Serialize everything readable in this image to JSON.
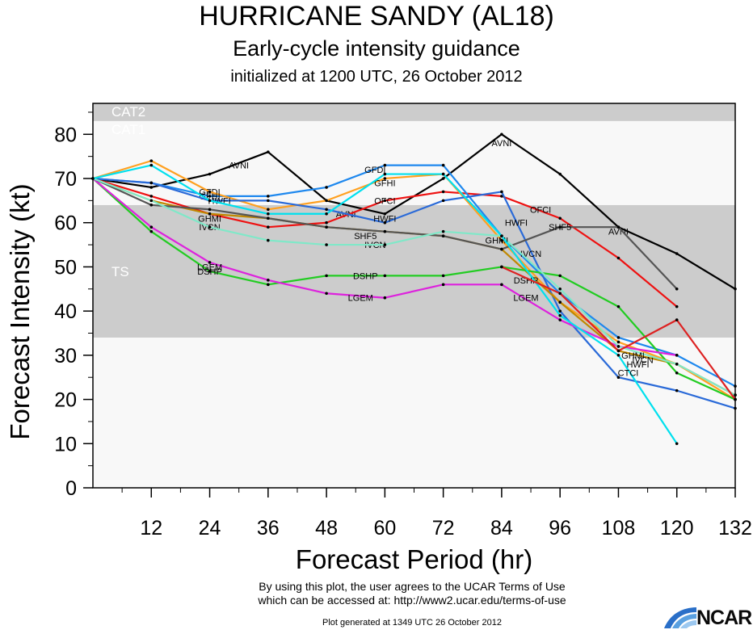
{
  "header": {
    "title": "HURRICANE SANDY (AL18)",
    "subtitle": "Early-cycle intensity guidance",
    "init": "initialized at 1200 UTC, 26 October 2012"
  },
  "footer": {
    "terms_line1": "By using this plot, the user agrees to the UCAR Terms of Use",
    "terms_line2": "which can be accessed at: http://www2.ucar.edu/terms-of-use",
    "generated": "Plot generated at 1349 UTC   26 October 2012",
    "logo_text": "NCAR"
  },
  "chart_data": {
    "type": "line",
    "xlabel": "Forecast Period (hr)",
    "ylabel": "Forecast Intensity (kt)",
    "xlim": [
      0,
      132
    ],
    "ylim": [
      0,
      87
    ],
    "xticks": [
      12,
      24,
      36,
      48,
      60,
      72,
      84,
      96,
      108,
      120,
      132
    ],
    "yticks": [
      0,
      10,
      20,
      30,
      40,
      50,
      60,
      70,
      80
    ],
    "bands": [
      {
        "label": "TS",
        "from": 34,
        "to": 64,
        "color": "#cccccc"
      },
      {
        "label": "CAT1",
        "from": 64,
        "to": 83,
        "color": "#f8f8f8"
      },
      {
        "label": "CAT2",
        "from": 83,
        "to": 96,
        "color": "#cccccc"
      }
    ],
    "below_band_color": "#f8f8f8",
    "series": [
      {
        "name": "AVNI",
        "color": "#000000",
        "x": [
          0,
          12,
          24,
          36,
          48,
          60,
          72,
          84,
          96,
          108,
          120,
          132
        ],
        "y": [
          70,
          68,
          71,
          76,
          65,
          62,
          70,
          80,
          71,
          59,
          53,
          45
        ],
        "labels": [
          [
            30,
            73
          ],
          [
            52,
            62
          ],
          [
            84,
            78
          ],
          [
            108,
            58
          ]
        ]
      },
      {
        "name": "OFCI",
        "color": "#ee1111",
        "x": [
          0,
          12,
          24,
          36,
          48,
          60,
          72,
          84,
          96,
          108,
          120
        ],
        "y": [
          70,
          66,
          62,
          59,
          60,
          65,
          67,
          66,
          61,
          52,
          41
        ],
        "labels": [
          [
            60,
            65
          ],
          [
            92,
            63
          ]
        ]
      },
      {
        "name": "GFDI",
        "color": "#1e88ee",
        "x": [
          0,
          12,
          24,
          36,
          48,
          60,
          72,
          84,
          96,
          108,
          120,
          132
        ],
        "y": [
          70,
          69,
          66,
          66,
          68,
          73,
          73,
          57,
          44,
          34,
          30,
          23
        ],
        "labels": [
          [
            24,
            67
          ],
          [
            58,
            72
          ]
        ]
      },
      {
        "name": "GFHI",
        "color": "#ffa020",
        "x": [
          0,
          12,
          24,
          36,
          48,
          60,
          72,
          84,
          96,
          108,
          120,
          132
        ],
        "y": [
          70,
          74,
          67,
          63,
          65,
          70,
          71,
          56,
          42,
          33,
          28,
          20
        ],
        "labels": [
          [
            24,
            66
          ],
          [
            60,
            69
          ]
        ]
      },
      {
        "name": "HWFI",
        "color": "#2a6ad8",
        "x": [
          0,
          12,
          24,
          36,
          48,
          60,
          72,
          84,
          96,
          108,
          120,
          132
        ],
        "y": [
          70,
          69,
          65,
          65,
          63,
          60,
          65,
          67,
          40,
          25,
          22,
          18
        ],
        "labels": [
          [
            26,
            65
          ],
          [
            60,
            61
          ],
          [
            87,
            60
          ],
          [
            112,
            28
          ]
        ]
      },
      {
        "name": "IVCN",
        "color": "#c08800",
        "x": [
          0,
          12,
          24,
          36,
          48,
          60,
          72,
          84,
          96,
          108,
          120,
          132
        ],
        "y": [
          70,
          65,
          62,
          61,
          59,
          58,
          57,
          54,
          42,
          31,
          28,
          21
        ],
        "labels": [
          [
            24,
            59
          ],
          [
            58,
            55
          ],
          [
            90,
            53
          ],
          [
            113,
            29
          ]
        ]
      },
      {
        "name": "DSHP",
        "color": "#22cc22",
        "x": [
          0,
          12,
          24,
          36,
          48,
          60,
          72,
          84,
          96,
          108,
          120,
          132
        ],
        "y": [
          70,
          58,
          49,
          46,
          48,
          48,
          48,
          50,
          48,
          41,
          26,
          20
        ],
        "labels": [
          [
            24,
            49
          ],
          [
            56,
            48
          ],
          [
            89,
            47
          ]
        ]
      },
      {
        "name": "LGEM",
        "color": "#dd22dd",
        "x": [
          0,
          12,
          24,
          36,
          48,
          60,
          72,
          84,
          96,
          108,
          120
        ],
        "y": [
          70,
          59,
          51,
          47,
          44,
          43,
          46,
          46,
          38,
          32,
          30
        ],
        "labels": [
          [
            24,
            50
          ],
          [
            55,
            43
          ],
          [
            89,
            43
          ]
        ]
      },
      {
        "name": "SHF5",
        "color": "#555555",
        "x": [
          0,
          12,
          24,
          36,
          48,
          60,
          72,
          84,
          96,
          108,
          120
        ],
        "y": [
          70,
          64,
          63,
          61,
          59,
          58,
          57,
          54,
          59,
          59,
          45
        ],
        "labels": [
          [
            56,
            57
          ],
          [
            96,
            59
          ]
        ]
      },
      {
        "name": "GHMI",
        "color": "#80e8c8",
        "x": [
          0,
          12,
          24,
          36,
          48,
          60,
          72,
          84,
          96,
          108,
          120,
          132
        ],
        "y": [
          70,
          65,
          59,
          56,
          55,
          55,
          58,
          57,
          45,
          32,
          28,
          21
        ],
        "labels": [
          [
            24,
            61
          ],
          [
            83,
            56
          ],
          [
            111,
            30
          ]
        ]
      },
      {
        "name": "CTCI",
        "color": "#00e0ee",
        "x": [
          0,
          12,
          24,
          36,
          48,
          60,
          72,
          84,
          96,
          108,
          120
        ],
        "y": [
          70,
          73,
          65,
          62,
          62,
          71,
          71,
          57,
          39,
          30,
          10
        ],
        "labels": [
          [
            110,
            26
          ]
        ]
      },
      {
        "name": "DSHP",
        "color": "#dd2222",
        "x": [
          84,
          96,
          108,
          120,
          132
        ],
        "y": [
          50,
          44,
          31,
          38,
          20
        ],
        "labels": []
      }
    ]
  }
}
